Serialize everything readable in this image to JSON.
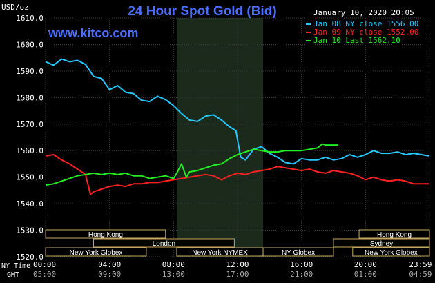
{
  "chart_data": {
    "type": "line",
    "title": "24 Hour Spot Gold (Bid)",
    "ylabel": "USD/oz",
    "watermark": "www.kitco.com",
    "date_label": "January 10, 2020 20:05",
    "ylim": [
      1520,
      1610
    ],
    "y_ticks": [
      "1520.0",
      "1530.0",
      "1540.0",
      "1550.0",
      "1560.0",
      "1570.0",
      "1580.0",
      "1590.0",
      "1600.0",
      "1610.0"
    ],
    "x_row_label_ny": "NY Time",
    "x_row_label_gmt": "GMT",
    "x_ticks_ny": [
      "00:00",
      "04:00",
      "08:00",
      "12:00",
      "16:00",
      "20:00",
      "23:59"
    ],
    "x_ticks_gmt": [
      "05:00",
      "09:00",
      "13:00",
      "17:00",
      "21:00",
      "01:00",
      "04:59"
    ],
    "x_tick_hours": [
      0,
      4,
      8,
      12,
      16,
      20,
      23.98
    ],
    "shaded_region_hours": [
      8.2,
      13.6
    ],
    "legend_position": "top-right",
    "colors": {
      "background": "#000000",
      "grid": "#3a3a3a",
      "shade": "#1c2a1c",
      "axis_text": "#ffffff",
      "title": "#4a6fff",
      "watermark": "#4a6fff",
      "session_fill": "#000000",
      "session_border": "#c8a860",
      "session_text": "#ffffff"
    },
    "series": [
      {
        "name": "Jan 08 NY close 1556.00",
        "color": "#22c8ff",
        "x": [
          0,
          0.5,
          1,
          1.5,
          2,
          2.5,
          3,
          3.5,
          4,
          4.5,
          5,
          5.5,
          6,
          6.5,
          7,
          7.5,
          8,
          8.5,
          9,
          9.5,
          10,
          10.5,
          11,
          11.5,
          11.9,
          12.2,
          12.5,
          13,
          13.5,
          14,
          14.5,
          15,
          15.5,
          16,
          16.5,
          17,
          17.5,
          18,
          18.5,
          19,
          19.5,
          20,
          20.5,
          21,
          21.5,
          22,
          22.5,
          23,
          23.5,
          23.98
        ],
        "y": [
          1593.5,
          1592.2,
          1594.5,
          1593.5,
          1594,
          1592.5,
          1588,
          1587.2,
          1583,
          1584.5,
          1582,
          1581.5,
          1579,
          1578.5,
          1580.5,
          1579.2,
          1577,
          1574,
          1571.5,
          1571,
          1573,
          1573.5,
          1571.5,
          1569,
          1567.5,
          1557.5,
          1556.5,
          1560.5,
          1561.5,
          1559,
          1557.5,
          1555.5,
          1555,
          1557,
          1556.5,
          1556.5,
          1557.5,
          1556.5,
          1557,
          1558.5,
          1557.5,
          1558.5,
          1560,
          1559,
          1559,
          1559.5,
          1558.5,
          1559,
          1558.5,
          1558
        ]
      },
      {
        "name": "Jan 09 NY close 1552.00",
        "color": "#ff2020",
        "x": [
          0,
          0.5,
          1,
          1.5,
          2,
          2.5,
          2.8,
          3,
          3.5,
          4,
          4.5,
          5,
          5.5,
          6,
          6.5,
          7,
          7.5,
          8,
          8.5,
          9,
          9.5,
          10,
          10.5,
          11,
          11.5,
          12,
          12.5,
          13,
          13.5,
          14,
          14.5,
          15,
          15.5,
          16,
          16.5,
          17,
          17.5,
          18,
          18.5,
          19,
          19.5,
          20,
          20.5,
          21,
          21.5,
          22,
          22.5,
          23,
          23.5,
          23.98
        ],
        "y": [
          1558,
          1558.5,
          1556.5,
          1555,
          1553,
          1551,
          1543.5,
          1544.5,
          1545.5,
          1546.5,
          1547,
          1546.5,
          1547.5,
          1547.5,
          1548,
          1548,
          1548.5,
          1549,
          1549.5,
          1550,
          1550.5,
          1551,
          1550.5,
          1549,
          1550.5,
          1551.5,
          1551,
          1552,
          1552.5,
          1553,
          1554,
          1553.5,
          1553,
          1552.5,
          1553,
          1552,
          1551.5,
          1552.5,
          1552,
          1551.5,
          1550.5,
          1549,
          1550,
          1549,
          1548.5,
          1549,
          1548.5,
          1547.5,
          1547.5,
          1547.5
        ]
      },
      {
        "name": "Jan 10 Last 1562.10",
        "color": "#22ee22",
        "x": [
          0,
          0.5,
          1,
          1.5,
          2,
          2.5,
          3,
          3.5,
          4,
          4.5,
          5,
          5.5,
          6,
          6.5,
          7,
          7.5,
          8,
          8.2,
          8.5,
          8.8,
          9,
          9.5,
          10,
          10.5,
          11,
          11.5,
          12,
          12.5,
          13,
          13.5,
          14,
          14.5,
          15,
          15.5,
          16,
          16.5,
          17,
          17.3,
          17.5,
          18,
          18.3
        ],
        "y": [
          1547,
          1547.5,
          1548.5,
          1549.5,
          1550.5,
          1551,
          1551.5,
          1551,
          1551.5,
          1551,
          1551.5,
          1550.5,
          1550.5,
          1549.5,
          1550,
          1550.5,
          1549.5,
          1551.5,
          1555,
          1550,
          1552,
          1552.5,
          1553.5,
          1554.5,
          1555,
          1557,
          1558.5,
          1559.5,
          1560.5,
          1560,
          1559.5,
          1559.5,
          1560,
          1560,
          1560,
          1560.5,
          1561,
          1562.5,
          1562.1,
          1562.1,
          1562.1
        ]
      }
    ],
    "session_rows": [
      [
        {
          "label": "Hong Kong",
          "start": -1,
          "end": 7.5
        },
        {
          "label": "Hong Kong",
          "start": 19.6,
          "end": 25
        }
      ],
      [
        {
          "label": "London",
          "start": 3,
          "end": 11.8
        },
        {
          "label": "Sydney",
          "start": 18,
          "end": 25
        }
      ],
      [
        {
          "label": "New York Globex",
          "start": -1,
          "end": 6.3
        },
        {
          "label": "New York NYMEX",
          "start": 8.2,
          "end": 13.6
        },
        {
          "label": "NY Globex",
          "start": 13.6,
          "end": 18
        },
        {
          "label": "New York Globex",
          "start": 19.2,
          "end": 25
        }
      ]
    ]
  }
}
